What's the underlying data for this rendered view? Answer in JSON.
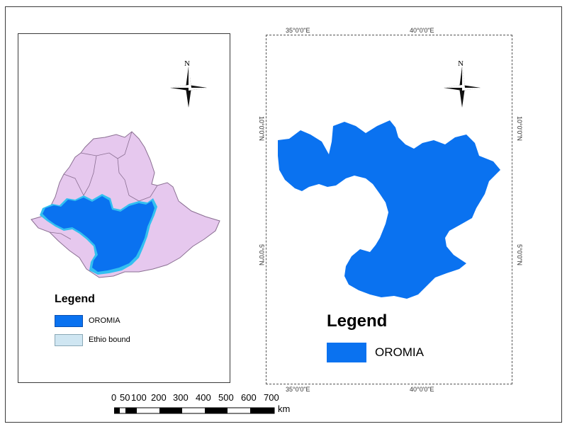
{
  "left_map": {
    "legend_title": "Legend",
    "legend_items": [
      {
        "label": "OROMIA",
        "color": "#0a72f0"
      },
      {
        "label": "Ethio bound",
        "color": "#cfe6f2"
      }
    ],
    "region_fill": "#e6c8ee",
    "highlight_fill": "#0a72f0",
    "highlight_halo": "#33c0f0",
    "north_label": "N"
  },
  "right_map": {
    "legend_title": "Legend",
    "legend_items": [
      {
        "label": "OROMIA",
        "color": "#0a72f0"
      }
    ],
    "north_label": "N",
    "graticule": {
      "top": [
        "35°0'0\"E",
        "40°0'0\"E"
      ],
      "bottom": [
        "35°0'0\"E",
        "40°0'0\"E"
      ],
      "left": [
        "10°0'0\"N",
        "5°0'0\"N"
      ],
      "right": [
        "10°0'0\"N",
        "5°0'0\"N"
      ]
    }
  },
  "scale_bar": {
    "labels": [
      "0",
      "50",
      "100",
      "200",
      "300",
      "400",
      "500",
      "600",
      "700"
    ],
    "unit": "km"
  }
}
